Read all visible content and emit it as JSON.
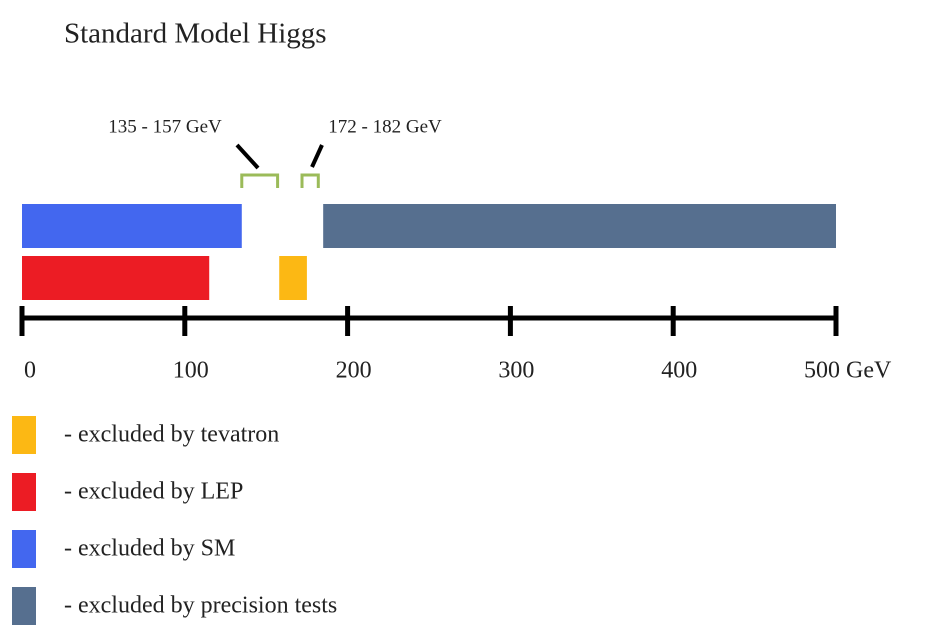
{
  "chart_data": {
    "type": "range",
    "title": "Standard Model Higgs",
    "xlim": [
      0,
      500
    ],
    "xticks": [
      0,
      100,
      200,
      300,
      400,
      {
        "value": 500,
        "label": "500 GeV"
      }
    ],
    "series": [
      {
        "name": "- excluded by tevatron",
        "color": "#fcb814",
        "values": [
          158,
          175
        ]
      },
      {
        "name": "- excluded by LEP",
        "color": "#ec1c24",
        "values": [
          0,
          115
        ]
      },
      {
        "name": "- excluded by SM",
        "color": "#4367ef",
        "values": [
          0,
          135
        ]
      },
      {
        "name": "- excluded by precision tests",
        "color": "#566f8f",
        "values": [
          185,
          500
        ]
      }
    ],
    "annotations": [
      {
        "label": "135 - 157 GeV",
        "range": [
          135,
          157
        ]
      },
      {
        "label": "172 - 182 GeV",
        "range": [
          172,
          182
        ]
      }
    ]
  }
}
